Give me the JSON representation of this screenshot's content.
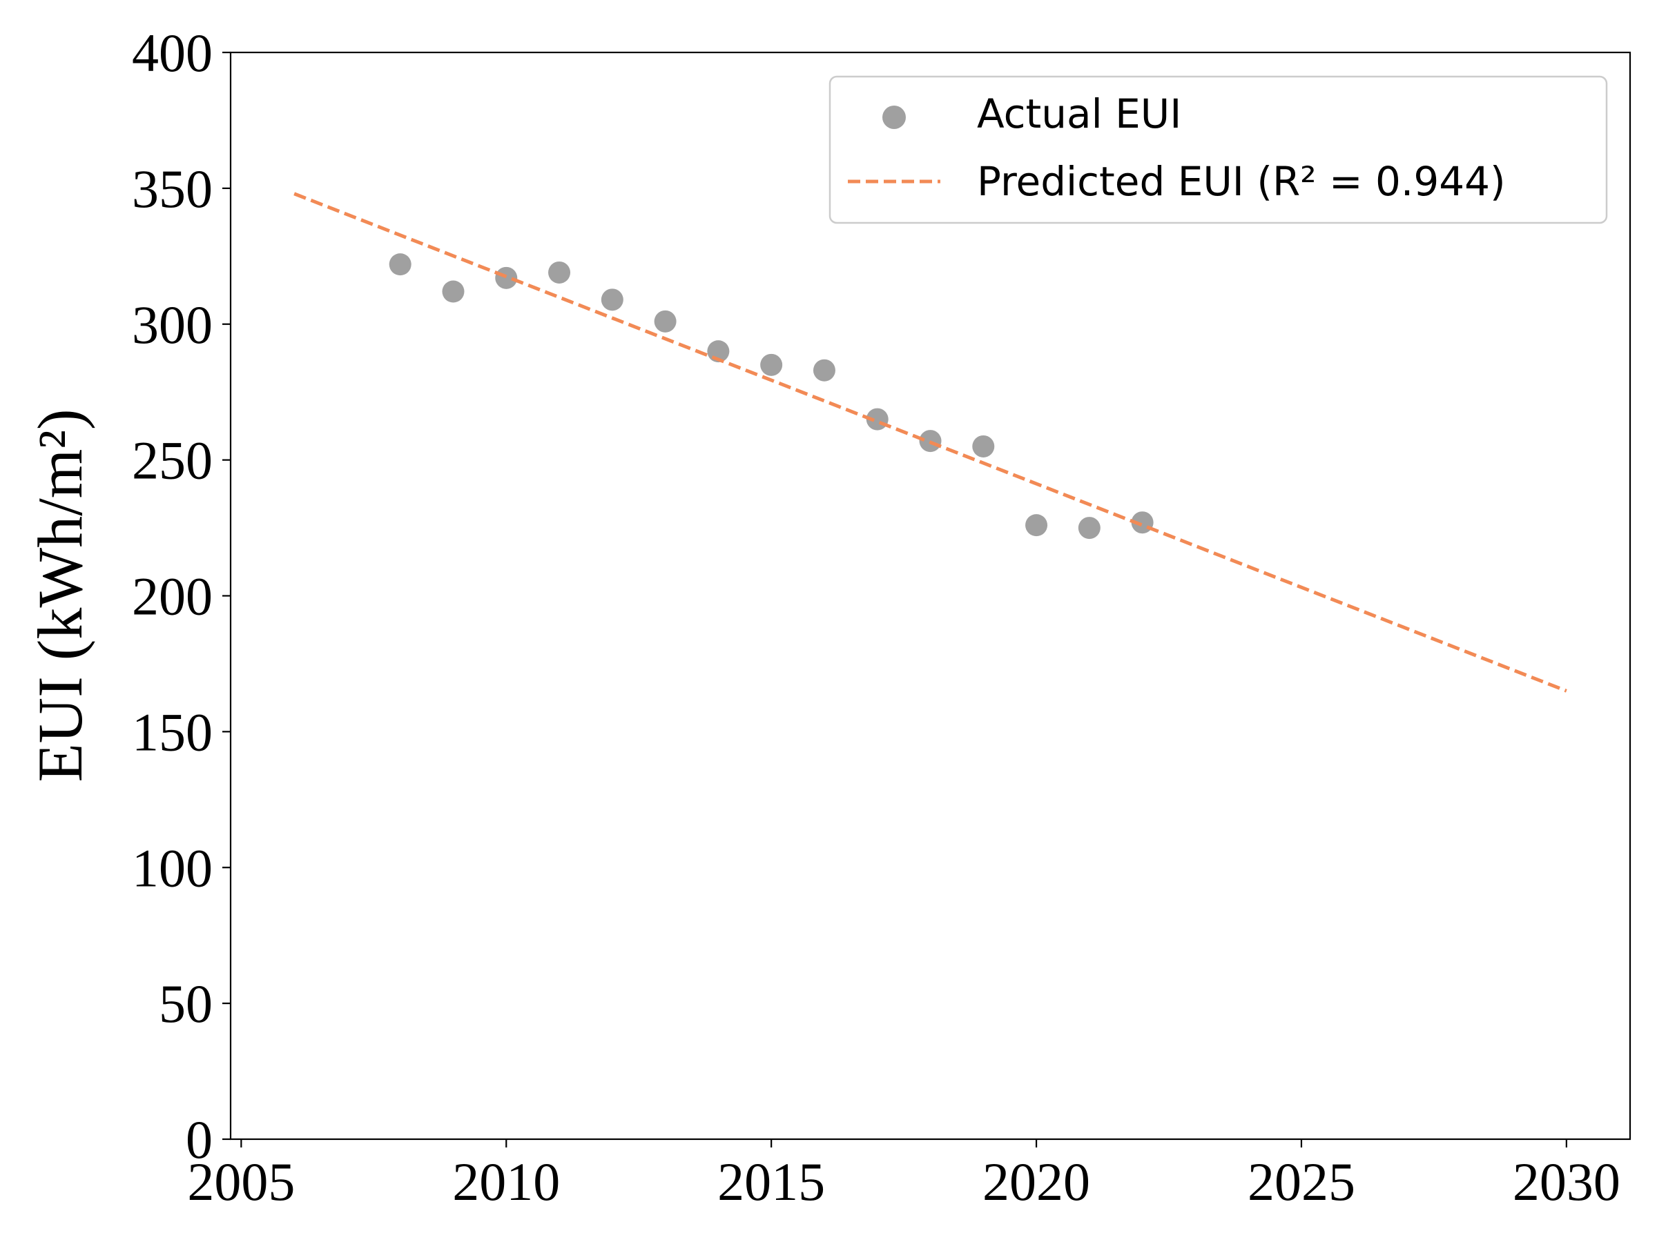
{
  "chart_data": {
    "type": "scatter",
    "title": "",
    "xlabel": "",
    "ylabel": "EUI (kWh/m²)",
    "xlim": [
      2004.8,
      2031.2
    ],
    "ylim": [
      0,
      400
    ],
    "x_ticks": [
      "2005",
      "2010",
      "2015",
      "2020",
      "2025",
      "2030"
    ],
    "y_ticks": [
      "0",
      "50",
      "100",
      "150",
      "200",
      "250",
      "300",
      "350",
      "400"
    ],
    "grid": false,
    "legend_position": "top-right",
    "series": [
      {
        "name": "Actual EUI",
        "kind": "scatter",
        "color": "#a0a0a0",
        "x": [
          2008,
          2009,
          2010,
          2011,
          2012,
          2013,
          2014,
          2015,
          2016,
          2017,
          2018,
          2019,
          2020,
          2021,
          2022
        ],
        "y": [
          322,
          312,
          317,
          319,
          309,
          301,
          290,
          285,
          283,
          265,
          257,
          255,
          226,
          225,
          227
        ]
      },
      {
        "name": "Predicted EUI (R² = 0.944)",
        "kind": "line",
        "style": "dashed",
        "color": "#f28a55",
        "x": [
          2006,
          2030
        ],
        "y": [
          348,
          165
        ]
      }
    ]
  }
}
